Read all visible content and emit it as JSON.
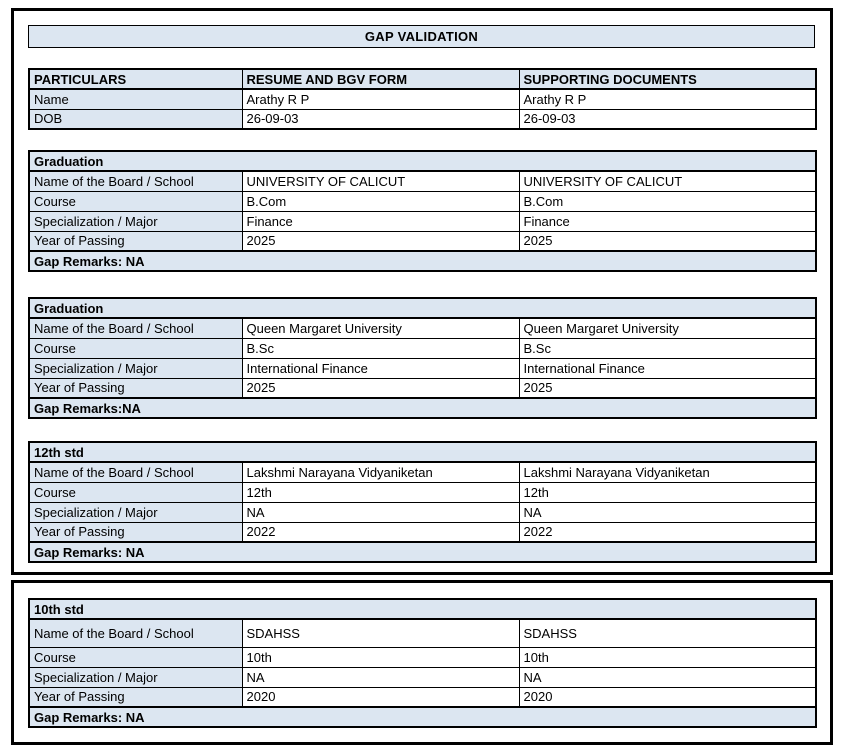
{
  "title": "GAP VALIDATION",
  "colors": {
    "header_fill": "#dce6f1",
    "border": "#000000",
    "background": "#ffffff"
  },
  "particulars": {
    "headers": [
      "PARTICULARS",
      "RESUME AND BGV FORM",
      "SUPPORTING DOCUMENTS"
    ],
    "rows": [
      {
        "label": "Name",
        "resume": "Arathy R P",
        "supporting": "Arathy R P"
      },
      {
        "label": "DOB",
        "resume": "26-09-03",
        "supporting": "26-09-03"
      }
    ]
  },
  "sections": [
    {
      "heading": "Graduation",
      "rows": [
        {
          "label": "Name of the Board / School",
          "resume": "UNIVERSITY OF CALICUT",
          "supporting": "UNIVERSITY OF CALICUT"
        },
        {
          "label": "Course",
          "resume": "B.Com",
          "supporting": "B.Com"
        },
        {
          "label": "Specialization / Major",
          "resume": "Finance",
          "supporting": "Finance"
        },
        {
          "label": "Year of Passing",
          "resume": "2025",
          "supporting": "2025"
        }
      ],
      "gap_remarks": "Gap Remarks: NA"
    },
    {
      "heading": "Graduation",
      "rows": [
        {
          "label": "Name of the Board / School",
          "resume": "Queen Margaret University",
          "supporting": "Queen Margaret University"
        },
        {
          "label": "Course",
          "resume": "B.Sc",
          "supporting": "B.Sc"
        },
        {
          "label": "Specialization / Major",
          "resume": "International Finance",
          "supporting": "International Finance"
        },
        {
          "label": "Year of Passing",
          "resume": "2025",
          "supporting": "2025"
        }
      ],
      "gap_remarks": "Gap Remarks:NA"
    },
    {
      "heading": "12th std",
      "rows": [
        {
          "label": "Name of the Board / School",
          "resume": "Lakshmi Narayana Vidyaniketan",
          "supporting": "Lakshmi Narayana Vidyaniketan"
        },
        {
          "label": "Course",
          "resume": "12th",
          "supporting": "12th"
        },
        {
          "label": "Specialization / Major",
          "resume": "NA",
          "supporting": "NA"
        },
        {
          "label": "Year of Passing",
          "resume": "2022",
          "supporting": "2022"
        }
      ],
      "gap_remarks": "Gap Remarks: NA"
    },
    {
      "heading": "10th std",
      "rows": [
        {
          "label": "Name of the Board / School",
          "resume": "SDAHSS",
          "supporting": "SDAHSS"
        },
        {
          "label": "Course",
          "resume": "10th",
          "supporting": "10th"
        },
        {
          "label": "Specialization / Major",
          "resume": "NA",
          "supporting": "NA"
        },
        {
          "label": "Year of Passing",
          "resume": "2020",
          "supporting": "2020"
        }
      ],
      "gap_remarks": "Gap Remarks: NA"
    }
  ]
}
